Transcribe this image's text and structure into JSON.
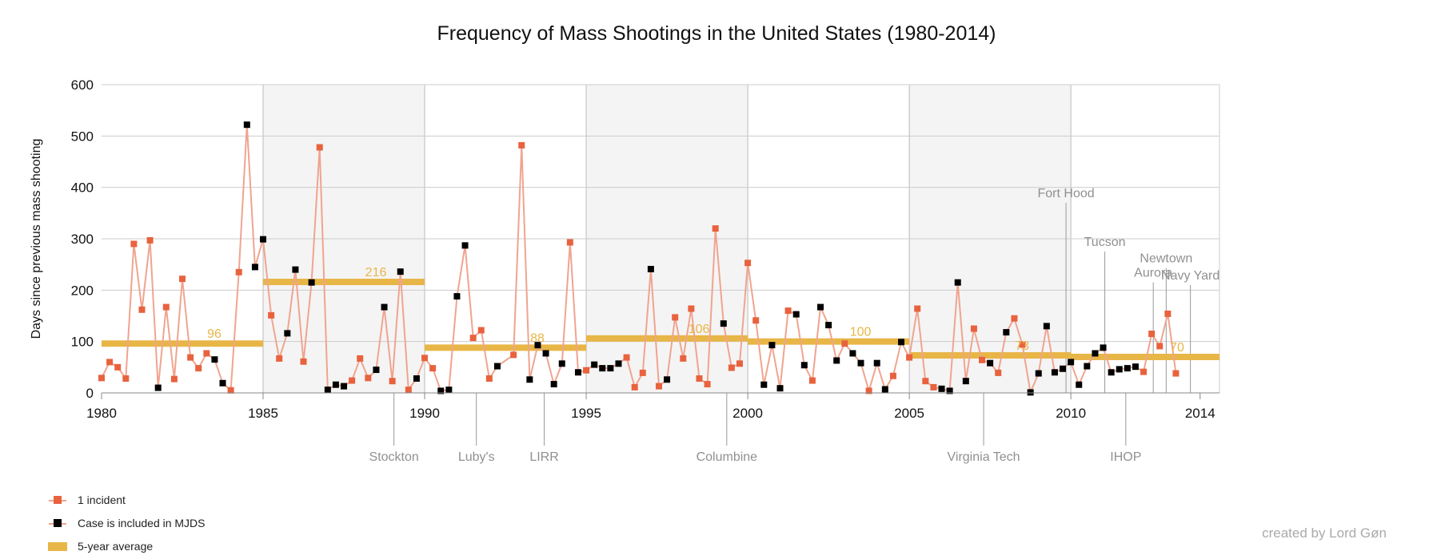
{
  "chart_data": {
    "type": "line",
    "title": "Frequency of Mass Shootings in the United States (1980-2014)",
    "xlabel": "",
    "ylabel": "Days since previous mass shooting",
    "xlim": [
      1980,
      2014.6
    ],
    "ylim": [
      0,
      600
    ],
    "y_ticks": [
      0,
      100,
      200,
      300,
      400,
      500,
      600
    ],
    "x_ticks": [
      1980,
      1985,
      1990,
      1995,
      2000,
      2005,
      2010,
      2014
    ],
    "grid": true,
    "legend_position": "bottom-left",
    "shaded_periods": [
      [
        1985,
        1990
      ],
      [
        1995,
        2000
      ],
      [
        2005,
        2010
      ]
    ],
    "colors": {
      "incident": "#e8623e",
      "line": "#f0a48f",
      "mjds": "#000000",
      "average": "#e8b646",
      "event_label": "#909090",
      "shade": "#f4f4f4",
      "grid": "#cccccc"
    },
    "series": [
      {
        "name": "1 incident",
        "points": [
          [
            1980.0,
            29,
            0
          ],
          [
            1980.25,
            60,
            0
          ],
          [
            1980.5,
            50,
            0
          ],
          [
            1980.75,
            28,
            0
          ],
          [
            1981.0,
            290,
            0
          ],
          [
            1981.25,
            162,
            0
          ],
          [
            1981.5,
            297,
            0
          ],
          [
            1981.75,
            10,
            1
          ],
          [
            1982.0,
            167,
            0
          ],
          [
            1982.25,
            27,
            0
          ],
          [
            1982.5,
            222,
            0
          ],
          [
            1982.75,
            69,
            0
          ],
          [
            1983.0,
            48,
            0
          ],
          [
            1983.25,
            77,
            0
          ],
          [
            1983.5,
            65,
            1
          ],
          [
            1983.75,
            19,
            1
          ],
          [
            1984.0,
            5,
            0
          ],
          [
            1984.25,
            235,
            0
          ],
          [
            1984.5,
            522,
            1
          ],
          [
            1984.75,
            245,
            1
          ],
          [
            1985.0,
            299,
            1
          ],
          [
            1985.25,
            151,
            0
          ],
          [
            1985.5,
            67,
            0
          ],
          [
            1985.75,
            116,
            1
          ],
          [
            1986.0,
            240,
            1
          ],
          [
            1986.25,
            61,
            0
          ],
          [
            1986.5,
            215,
            1
          ],
          [
            1986.75,
            478,
            0
          ],
          [
            1987.0,
            6,
            1
          ],
          [
            1987.25,
            16,
            1
          ],
          [
            1987.5,
            13,
            1
          ],
          [
            1987.75,
            24,
            0
          ],
          [
            1988.0,
            67,
            0
          ],
          [
            1988.25,
            29,
            0
          ],
          [
            1988.5,
            45,
            1
          ],
          [
            1988.75,
            167,
            1
          ],
          [
            1989.0,
            23,
            0
          ],
          [
            1989.25,
            236,
            1
          ],
          [
            1989.5,
            6,
            0
          ],
          [
            1989.75,
            28,
            1
          ],
          [
            1990.0,
            68,
            0
          ],
          [
            1990.25,
            48,
            0
          ],
          [
            1990.5,
            4,
            1
          ],
          [
            1990.75,
            6,
            1
          ],
          [
            1991.0,
            188,
            1
          ],
          [
            1991.25,
            287,
            1
          ],
          [
            1991.5,
            107,
            0
          ],
          [
            1991.75,
            122,
            0
          ],
          [
            1992.0,
            28,
            0
          ],
          [
            1992.25,
            52,
            1
          ],
          [
            1992.75,
            74,
            0
          ],
          [
            1993.0,
            482,
            0
          ],
          [
            1993.25,
            26,
            1
          ],
          [
            1993.5,
            93,
            1
          ],
          [
            1993.75,
            77,
            1
          ],
          [
            1994.0,
            17,
            1
          ],
          [
            1994.25,
            57,
            1
          ],
          [
            1994.5,
            293,
            0
          ],
          [
            1994.75,
            40,
            1
          ],
          [
            1995.0,
            44,
            0
          ],
          [
            1995.25,
            55,
            1
          ],
          [
            1995.5,
            48,
            1
          ],
          [
            1995.75,
            48,
            1
          ],
          [
            1996.0,
            57,
            1
          ],
          [
            1996.25,
            69,
            0
          ],
          [
            1996.5,
            11,
            0
          ],
          [
            1996.75,
            39,
            0
          ],
          [
            1997.0,
            241,
            1
          ],
          [
            1997.25,
            13,
            0
          ],
          [
            1997.5,
            26,
            1
          ],
          [
            1997.75,
            147,
            0
          ],
          [
            1998.0,
            67,
            0
          ],
          [
            1998.25,
            164,
            0
          ],
          [
            1998.5,
            28,
            0
          ],
          [
            1998.75,
            17,
            0
          ],
          [
            1999.0,
            320,
            0
          ],
          [
            1999.25,
            135,
            1
          ],
          [
            1999.5,
            49,
            0
          ],
          [
            1999.75,
            57,
            0
          ],
          [
            2000.0,
            253,
            0
          ],
          [
            2000.25,
            141,
            0
          ],
          [
            2000.5,
            16,
            1
          ],
          [
            2000.75,
            93,
            1
          ],
          [
            2001.0,
            9,
            1
          ],
          [
            2001.25,
            160,
            0
          ],
          [
            2001.5,
            153,
            1
          ],
          [
            2001.75,
            54,
            1
          ],
          [
            2002.0,
            24,
            0
          ],
          [
            2002.25,
            167,
            1
          ],
          [
            2002.5,
            132,
            1
          ],
          [
            2002.75,
            63,
            1
          ],
          [
            2003.0,
            96,
            0
          ],
          [
            2003.25,
            77,
            1
          ],
          [
            2003.5,
            58,
            1
          ],
          [
            2003.75,
            4,
            0
          ],
          [
            2004.0,
            58,
            1
          ],
          [
            2004.25,
            7,
            1
          ],
          [
            2004.5,
            33,
            0
          ],
          [
            2004.75,
            99,
            1
          ],
          [
            2005.0,
            69,
            0
          ],
          [
            2005.25,
            164,
            0
          ],
          [
            2005.5,
            23,
            0
          ],
          [
            2005.75,
            11,
            0
          ],
          [
            2006.0,
            8,
            1
          ],
          [
            2006.25,
            4,
            1
          ],
          [
            2006.5,
            215,
            1
          ],
          [
            2006.75,
            23,
            1
          ],
          [
            2007.0,
            125,
            0
          ],
          [
            2007.25,
            64,
            0
          ],
          [
            2007.5,
            58,
            1
          ],
          [
            2007.75,
            39,
            0
          ],
          [
            2008.0,
            118,
            1
          ],
          [
            2008.25,
            145,
            0
          ],
          [
            2008.5,
            94,
            0
          ],
          [
            2008.75,
            1,
            1
          ],
          [
            2009.0,
            38,
            1
          ],
          [
            2009.25,
            130,
            1
          ],
          [
            2009.5,
            40,
            1
          ],
          [
            2009.75,
            47,
            1
          ],
          [
            2010.0,
            60,
            1
          ],
          [
            2010.25,
            16,
            1
          ],
          [
            2010.5,
            52,
            1
          ],
          [
            2010.75,
            77,
            1
          ],
          [
            2011.0,
            88,
            1
          ],
          [
            2011.25,
            40,
            1
          ],
          [
            2011.5,
            46,
            1
          ],
          [
            2011.75,
            48,
            1
          ],
          [
            2012.0,
            51,
            1
          ],
          [
            2012.25,
            41,
            0
          ],
          [
            2012.5,
            115,
            0
          ],
          [
            2012.75,
            91,
            0
          ],
          [
            2013.0,
            154,
            0
          ],
          [
            2013.25,
            38,
            0
          ]
        ]
      },
      {
        "name": "Case is included in MJDS"
      },
      {
        "name": "5-year average",
        "segments": [
          {
            "x0": 1980,
            "x1": 1985,
            "value": 96,
            "label": "96"
          },
          {
            "x0": 1985,
            "x1": 1990,
            "value": 216,
            "label": "216"
          },
          {
            "x0": 1990,
            "x1": 1995,
            "value": 88,
            "label": "88"
          },
          {
            "x0": 1995,
            "x1": 2000,
            "value": 106,
            "label": "106"
          },
          {
            "x0": 2000,
            "x1": 2005,
            "value": 100,
            "label": "100"
          },
          {
            "x0": 2005,
            "x1": 2010,
            "value": 73,
            "label": "73"
          },
          {
            "x0": 2010,
            "x1": 2014.6,
            "value": 70,
            "label": "70"
          }
        ]
      }
    ],
    "events": [
      {
        "label": "Stockton",
        "x": 1989.05,
        "position": "below"
      },
      {
        "label": "Luby's",
        "x": 1991.6,
        "position": "below"
      },
      {
        "label": "LIRR",
        "x": 1993.7,
        "position": "below"
      },
      {
        "label": "Columbine",
        "x": 1999.35,
        "position": "below"
      },
      {
        "label": "Virginia Tech",
        "x": 2007.3,
        "position": "below"
      },
      {
        "label": "IHOP",
        "x": 2011.7,
        "position": "below"
      },
      {
        "label": "Fort Hood",
        "x": 2009.85,
        "position": "above",
        "value": 370
      },
      {
        "label": "Tucson",
        "x": 2011.05,
        "position": "above",
        "value": 275
      },
      {
        "label": "Aurora",
        "x": 2012.55,
        "position": "above",
        "value": 215
      },
      {
        "label": "Newtown",
        "x": 2012.95,
        "position": "above",
        "value": 243
      },
      {
        "label": "Navy Yard",
        "x": 2013.7,
        "position": "above",
        "value": 210
      }
    ]
  },
  "legend": {
    "incident_label": "1 incident",
    "mjds_label": "Case is included in MJDS",
    "average_label": "5-year average"
  },
  "credit": "created by Lord Gøn"
}
